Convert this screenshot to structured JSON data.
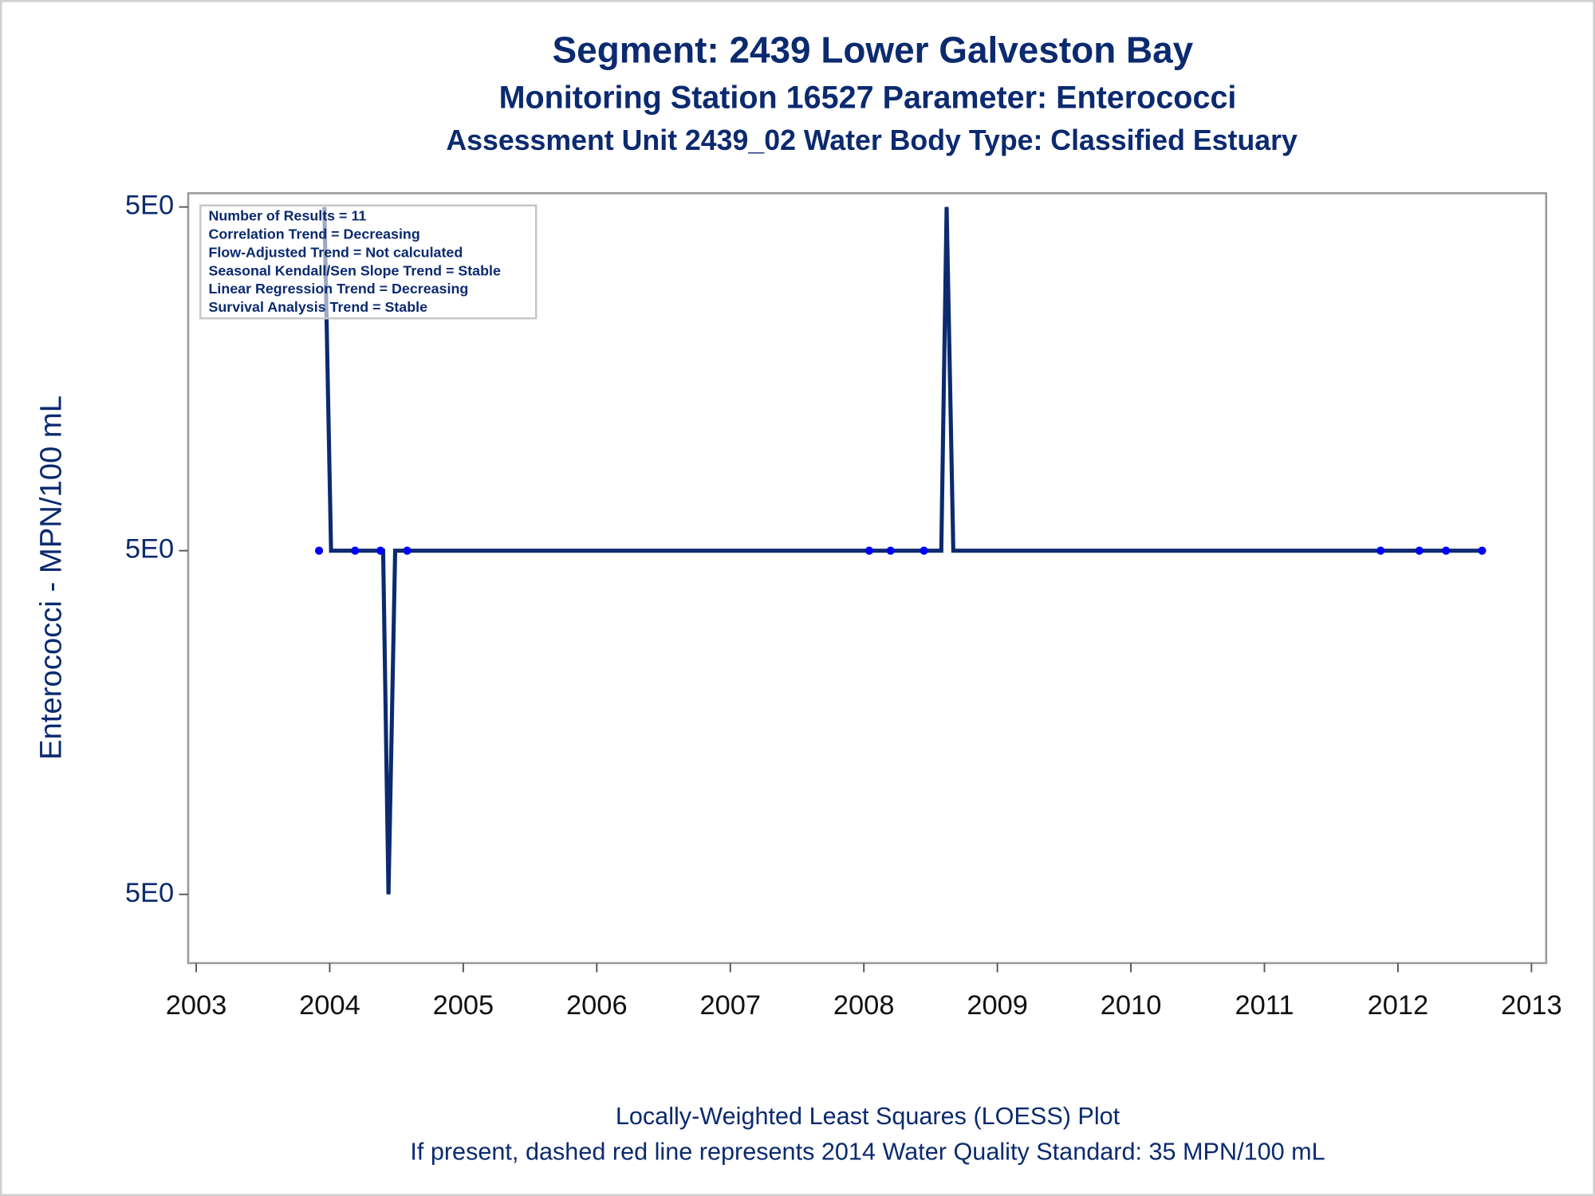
{
  "chart_data": {
    "type": "scatter",
    "title": "Segment: 2439  Lower Galveston Bay",
    "subtitle": "Monitoring Station 16527 Parameter: Enterococci",
    "subtitle2": "Assessment Unit 2439_02   Water Body Type: Classified Estuary",
    "ylabel": "Enterococci - MPN/100 mL",
    "footnotes": [
      "Locally-Weighted Least Squares (LOESS) Plot",
      "If present, dashed red line represents 2014 Water Quality Standard: 35 MPN/100 mL"
    ],
    "annotations": [
      "Number of Results = 11",
      "Correlation Trend = Decreasing",
      "Flow-Adjusted Trend = Not calculated",
      "Seasonal Kendall/Sen Slope Trend = Stable",
      "Linear Regression Trend = Decreasing",
      "Survival Analysis Trend = Stable"
    ],
    "xlim": [
      2002.94,
      2013.11
    ],
    "xticks": [
      2003,
      2004,
      2005,
      2006,
      2007,
      2008,
      2009,
      2010,
      2011,
      2012,
      2013
    ],
    "ylim": [
      4.99988,
      5.000104
    ],
    "yticks": [
      {
        "value": 4.9999,
        "label": "5E0"
      },
      {
        "value": 5,
        "label": "5E0"
      },
      {
        "value": 5.0001,
        "label": "5E0"
      }
    ],
    "series": [
      {
        "type": "scatter",
        "color": "#0000ff",
        "x": [
          2003.92,
          2004.19,
          2004.38,
          2004.58,
          2008.04,
          2008.2,
          2008.45,
          2011.87,
          2012.16,
          2012.36,
          2012.63
        ],
        "values": [
          5,
          5,
          5,
          5,
          5,
          5,
          5,
          5,
          5,
          5,
          5
        ]
      },
      {
        "type": "line",
        "color": "#0b2a6f",
        "x": [
          2003.96,
          2004.01,
          2004.4,
          2004.44,
          2004.49,
          2008.58,
          2008.62,
          2008.67,
          2012.63
        ],
        "values": [
          5.0001,
          5,
          5,
          4.9999,
          5,
          5,
          5.0001,
          5,
          5
        ]
      }
    ]
  }
}
